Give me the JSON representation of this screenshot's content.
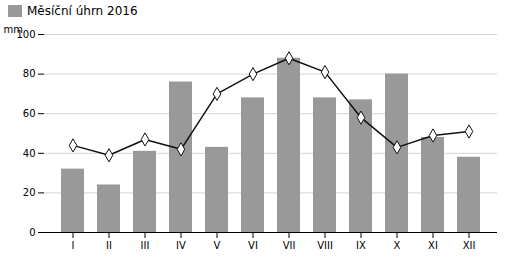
{
  "chart_data": {
    "type": "bar",
    "categories": [
      "I",
      "II",
      "III",
      "IV",
      "V",
      "VI",
      "VII",
      "VIII",
      "IX",
      "X",
      "XI",
      "XII"
    ],
    "ylabel": "mm",
    "ylim": [
      0,
      100
    ],
    "yticks": [
      0,
      20,
      40,
      60,
      80,
      100
    ],
    "grid": true,
    "legend": "upper left",
    "series": [
      {
        "name": "Měsíční úhrn 2016",
        "type": "bar",
        "color": "#999999",
        "values": [
          32,
          24,
          41,
          76,
          43,
          68,
          88,
          68,
          67,
          80,
          48,
          38
        ]
      },
      {
        "type": "line",
        "color": "#111111",
        "marker": "diamond",
        "values": [
          44,
          39,
          47,
          42,
          70,
          80,
          88,
          81,
          58,
          43,
          49,
          51
        ]
      }
    ]
  }
}
